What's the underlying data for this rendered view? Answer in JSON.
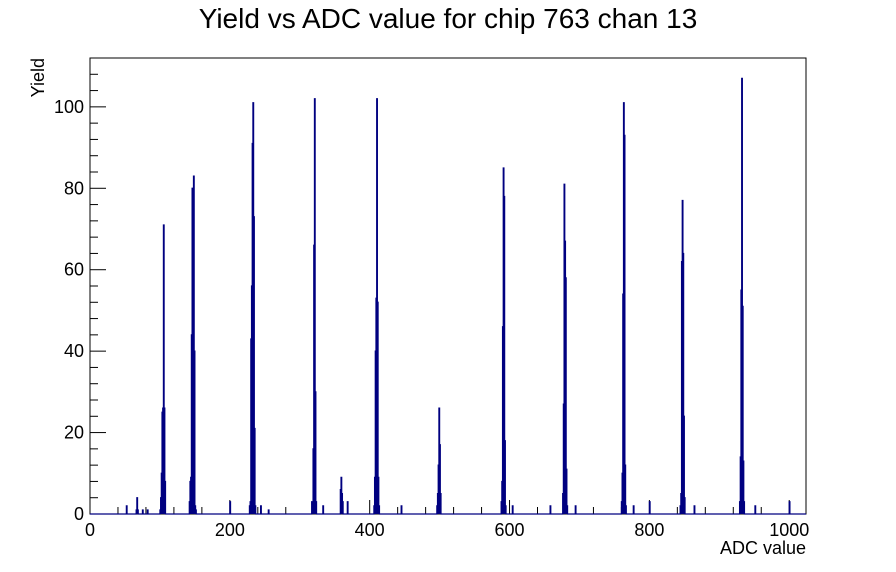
{
  "chart_data": {
    "type": "bar",
    "title": "Yield vs ADC value for chip 763 chan 13",
    "xlabel": "ADC value",
    "ylabel": "Yield",
    "xlim": [
      0,
      1024
    ],
    "ylim": [
      0,
      112
    ],
    "x_ticks": [
      0,
      200,
      400,
      600,
      800,
      1000
    ],
    "y_ticks": [
      0,
      20,
      40,
      60,
      80,
      100
    ],
    "grid": false,
    "legend": "none",
    "line_color": "#000080",
    "bin_width": 1,
    "bins": [
      [
        52,
        2
      ],
      [
        66,
        1
      ],
      [
        67,
        4
      ],
      [
        68,
        1
      ],
      [
        75,
        1
      ],
      [
        82,
        1
      ],
      [
        100,
        1
      ],
      [
        101,
        4
      ],
      [
        102,
        10
      ],
      [
        103,
        25
      ],
      [
        104,
        26
      ],
      [
        105,
        71
      ],
      [
        106,
        26
      ],
      [
        107,
        8
      ],
      [
        142,
        3
      ],
      [
        143,
        8
      ],
      [
        144,
        9
      ],
      [
        145,
        44
      ],
      [
        146,
        80
      ],
      [
        147,
        74
      ],
      [
        148,
        83
      ],
      [
        149,
        40
      ],
      [
        150,
        2
      ],
      [
        151,
        1
      ],
      [
        200,
        3
      ],
      [
        228,
        2
      ],
      [
        229,
        3
      ],
      [
        230,
        43
      ],
      [
        231,
        56
      ],
      [
        232,
        91
      ],
      [
        233,
        101
      ],
      [
        234,
        73
      ],
      [
        235,
        21
      ],
      [
        236,
        2
      ],
      [
        244,
        2
      ],
      [
        255,
        1
      ],
      [
        317,
        3
      ],
      [
        318,
        3
      ],
      [
        319,
        16
      ],
      [
        320,
        66
      ],
      [
        321,
        102
      ],
      [
        322,
        30
      ],
      [
        323,
        3
      ],
      [
        333,
        2
      ],
      [
        358,
        6
      ],
      [
        359,
        9
      ],
      [
        360,
        5
      ],
      [
        361,
        3
      ],
      [
        368,
        3
      ],
      [
        406,
        2
      ],
      [
        407,
        9
      ],
      [
        408,
        40
      ],
      [
        409,
        53
      ],
      [
        410,
        102
      ],
      [
        411,
        52
      ],
      [
        412,
        9
      ],
      [
        413,
        2
      ],
      [
        445,
        2
      ],
      [
        496,
        2
      ],
      [
        497,
        5
      ],
      [
        498,
        12
      ],
      [
        499,
        26
      ],
      [
        500,
        17
      ],
      [
        501,
        5
      ],
      [
        588,
        3
      ],
      [
        589,
        8
      ],
      [
        590,
        46
      ],
      [
        591,
        85
      ],
      [
        592,
        78
      ],
      [
        593,
        18
      ],
      [
        594,
        2
      ],
      [
        604,
        2
      ],
      [
        658,
        2
      ],
      [
        676,
        5
      ],
      [
        677,
        27
      ],
      [
        678,
        81
      ],
      [
        679,
        67
      ],
      [
        680,
        58
      ],
      [
        681,
        11
      ],
      [
        682,
        2
      ],
      [
        694,
        2
      ],
      [
        760,
        3
      ],
      [
        761,
        10
      ],
      [
        762,
        54
      ],
      [
        763,
        101
      ],
      [
        764,
        93
      ],
      [
        765,
        12
      ],
      [
        766,
        2
      ],
      [
        777,
        2
      ],
      [
        800,
        3
      ],
      [
        844,
        2
      ],
      [
        845,
        5
      ],
      [
        846,
        62
      ],
      [
        847,
        77
      ],
      [
        848,
        64
      ],
      [
        849,
        24
      ],
      [
        850,
        4
      ],
      [
        864,
        2
      ],
      [
        929,
        3
      ],
      [
        930,
        14
      ],
      [
        931,
        55
      ],
      [
        932,
        107
      ],
      [
        933,
        51
      ],
      [
        934,
        13
      ],
      [
        935,
        3
      ],
      [
        951,
        2
      ],
      [
        1000,
        3
      ]
    ]
  }
}
